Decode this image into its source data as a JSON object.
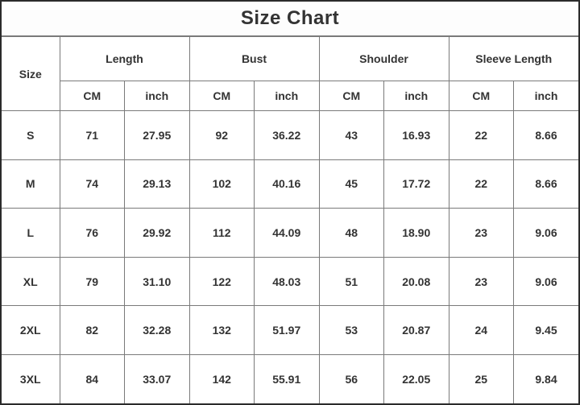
{
  "title": "Size Chart",
  "table": {
    "size_header": "Size",
    "groups": [
      {
        "label": "Length"
      },
      {
        "label": "Bust"
      },
      {
        "label": "Shoulder"
      },
      {
        "label": "Sleeve Length"
      }
    ],
    "unit_headers": [
      "CM",
      "inch"
    ],
    "rows": [
      {
        "size": "S",
        "values": [
          "71",
          "27.95",
          "92",
          "36.22",
          "43",
          "16.93",
          "22",
          "8.66"
        ]
      },
      {
        "size": "M",
        "values": [
          "74",
          "29.13",
          "102",
          "40.16",
          "45",
          "17.72",
          "22",
          "8.66"
        ]
      },
      {
        "size": "L",
        "values": [
          "76",
          "29.92",
          "112",
          "44.09",
          "48",
          "18.90",
          "23",
          "9.06"
        ]
      },
      {
        "size": "XL",
        "values": [
          "79",
          "31.10",
          "122",
          "48.03",
          "51",
          "20.08",
          "23",
          "9.06"
        ]
      },
      {
        "size": "2XL",
        "values": [
          "82",
          "32.28",
          "132",
          "51.97",
          "53",
          "20.87",
          "24",
          "9.45"
        ]
      },
      {
        "size": "3XL",
        "values": [
          "84",
          "33.07",
          "142",
          "55.91",
          "56",
          "22.05",
          "25",
          "9.84"
        ]
      }
    ]
  },
  "chart_data": {
    "type": "table",
    "title": "Size Chart",
    "columns": [
      "Size",
      "Length CM",
      "Length inch",
      "Bust CM",
      "Bust inch",
      "Shoulder CM",
      "Shoulder inch",
      "Sleeve Length CM",
      "Sleeve Length inch"
    ],
    "rows": [
      [
        "S",
        71,
        27.95,
        92,
        36.22,
        43,
        16.93,
        22,
        8.66
      ],
      [
        "M",
        74,
        29.13,
        102,
        40.16,
        45,
        17.72,
        22,
        8.66
      ],
      [
        "L",
        76,
        29.92,
        112,
        44.09,
        48,
        18.9,
        23,
        9.06
      ],
      [
        "XL",
        79,
        31.1,
        122,
        48.03,
        51,
        20.08,
        23,
        9.06
      ],
      [
        "2XL",
        82,
        32.28,
        132,
        51.97,
        53,
        20.87,
        24,
        9.45
      ],
      [
        "3XL",
        84,
        33.07,
        142,
        55.91,
        56,
        22.05,
        25,
        9.84
      ]
    ]
  },
  "colors": {
    "background": "#ffffff",
    "border_inner": "#7a7a7a",
    "border_outer": "#2b2b2b",
    "text": "#333333"
  }
}
